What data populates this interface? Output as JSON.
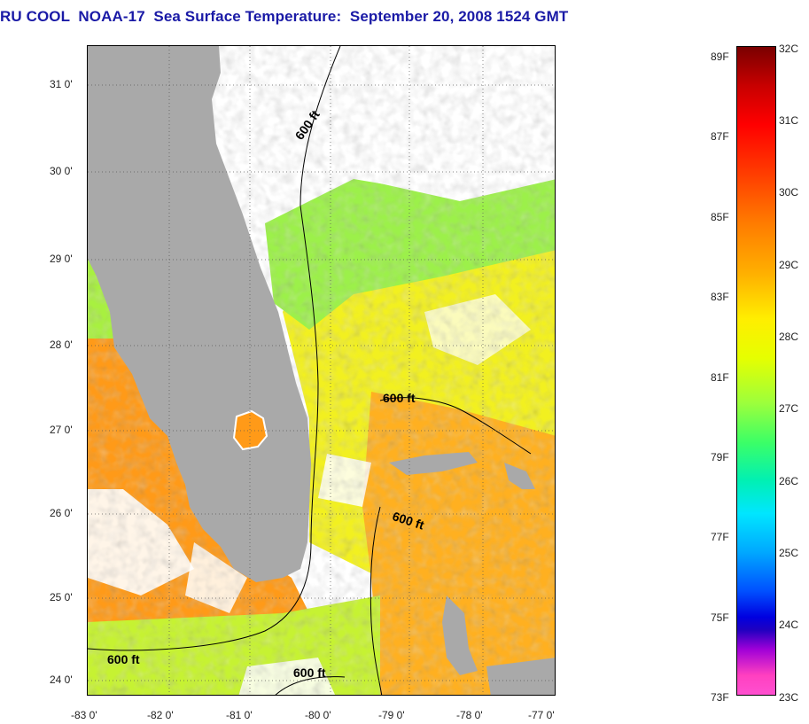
{
  "title": "RU COOL  NOAA-17  Sea Surface Temperature:  September 20, 2008 1524 GMT",
  "latitude_labels": [
    "31 0'",
    "30 0'",
    "29 0'",
    "28 0'",
    "27 0'",
    "26 0'",
    "25 0'",
    "24 0'"
  ],
  "longitude_labels": [
    "-83 0'",
    "-82 0'",
    "-81 0'",
    "-80 0'",
    "-79 0'",
    "-78 0'",
    "-77 0'"
  ],
  "contour_labels": [
    "600 ft",
    "600 ft",
    "600 ft",
    "600 ft",
    "600 ft"
  ],
  "colorbar": {
    "fahrenheit_labels": [
      "89F",
      "87F",
      "85F",
      "83F",
      "81F",
      "79F",
      "77F",
      "75F",
      "73F"
    ],
    "celsius_labels": [
      "32C",
      "31C",
      "30C",
      "29C",
      "28C",
      "27C",
      "26C",
      "25C",
      "24C",
      "23C"
    ]
  },
  "colors": {
    "land": "#a9a9a9",
    "cloud": "#ffffff",
    "title": "#1a1aa6"
  }
}
